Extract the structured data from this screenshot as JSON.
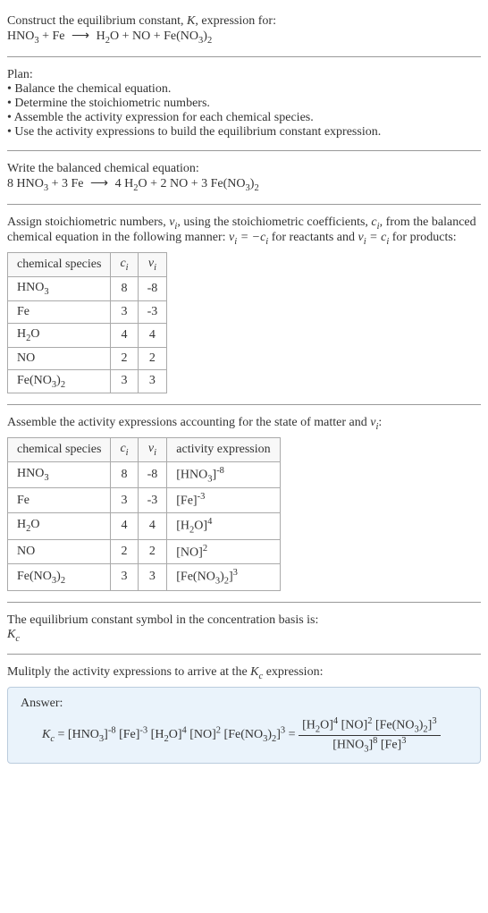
{
  "intro": {
    "line1_a": "Construct the equilibrium constant, ",
    "line1_b": ", expression for:"
  },
  "eq1": {
    "r1": "HNO",
    "r1s": "3",
    "r2": "Fe",
    "p1": "H",
    "p1s": "2",
    "p1b": "O",
    "p2": "NO",
    "p3": "Fe(NO",
    "p3s": "3",
    "p3b": ")",
    "p3s2": "2"
  },
  "plan": {
    "title": "Plan:",
    "b1": "• Balance the chemical equation.",
    "b2": "• Determine the stoichiometric numbers.",
    "b3": "• Assemble the activity expression for each chemical species.",
    "b4": "• Use the activity expressions to build the equilibrium constant expression."
  },
  "balanced": {
    "title": "Write the balanced chemical equation:",
    "c1": "8",
    "c2": "3",
    "c3": "4",
    "c4": "2",
    "c5": "3"
  },
  "assign": {
    "text_a": "Assign stoichiometric numbers, ",
    "text_b": ", using the stoichiometric coefficients, ",
    "text_c": ", from the balanced chemical equation in the following manner: ",
    "text_d": " for reactants and ",
    "text_e": " for products:"
  },
  "table1": {
    "h1": "chemical species",
    "rows": [
      {
        "sp": "HNO",
        "sub": "3",
        "ci": "8",
        "vi": "-8"
      },
      {
        "sp": "Fe",
        "sub": "",
        "ci": "3",
        "vi": "-3"
      },
      {
        "sp": "H",
        "sub": "2",
        "sp2": "O",
        "ci": "4",
        "vi": "4"
      },
      {
        "sp": "NO",
        "sub": "",
        "ci": "2",
        "vi": "2"
      },
      {
        "sp": "Fe(NO",
        "sub": "3",
        "sp2": ")",
        "sub2": "2",
        "ci": "3",
        "vi": "3"
      }
    ]
  },
  "assemble": {
    "text_a": "Assemble the activity expressions accounting for the state of matter and ",
    "text_b": ":"
  },
  "table2": {
    "h1": "chemical species",
    "h4": "activity expression",
    "rows": [
      {
        "sp": "HNO",
        "sub": "3",
        "ci": "8",
        "vi": "-8",
        "act_a": "[HNO",
        "act_sub": "3",
        "act_b": "]",
        "exp": "-8"
      },
      {
        "sp": "Fe",
        "sub": "",
        "ci": "3",
        "vi": "-3",
        "act_a": "[Fe]",
        "act_sub": "",
        "act_b": "",
        "exp": "-3"
      },
      {
        "sp": "H",
        "sub": "2",
        "sp2": "O",
        "ci": "4",
        "vi": "4",
        "act_a": "[H",
        "act_sub": "2",
        "act_b": "O]",
        "exp": "4"
      },
      {
        "sp": "NO",
        "sub": "",
        "ci": "2",
        "vi": "2",
        "act_a": "[NO]",
        "act_sub": "",
        "act_b": "",
        "exp": "2"
      },
      {
        "sp": "Fe(NO",
        "sub": "3",
        "sp2": ")",
        "sub2": "2",
        "ci": "3",
        "vi": "3",
        "act_a": "[Fe(NO",
        "act_sub": "3",
        "act_b": ")",
        "act_sub2": "2",
        "act_c": "]",
        "exp": "3"
      }
    ]
  },
  "kc_sym": {
    "line1": "The equilibrium constant symbol in the concentration basis is:"
  },
  "multiply": {
    "text_a": "Mulitply the activity expressions to arrive at the ",
    "text_b": " expression:"
  },
  "answer": {
    "label": "Answer:"
  }
}
